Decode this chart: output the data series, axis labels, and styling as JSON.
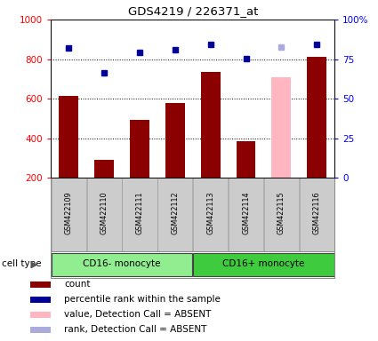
{
  "title": "GDS4219 / 226371_at",
  "samples": [
    "GSM422109",
    "GSM422110",
    "GSM422111",
    "GSM422112",
    "GSM422113",
    "GSM422114",
    "GSM422115",
    "GSM422116"
  ],
  "counts": [
    615,
    290,
    495,
    580,
    735,
    385,
    710,
    810
  ],
  "ranks_raw": [
    820,
    665,
    790,
    810,
    845,
    755,
    825,
    845
  ],
  "absent_mask": [
    false,
    false,
    false,
    false,
    false,
    false,
    true,
    false
  ],
  "ylim_left": [
    200,
    1000
  ],
  "ylim_right": [
    0,
    100
  ],
  "yticks_left": [
    200,
    400,
    600,
    800,
    1000
  ],
  "ytick_labels_left": [
    "200",
    "400",
    "600",
    "800",
    "1000"
  ],
  "yticks_right": [
    0,
    25,
    50,
    75,
    100
  ],
  "ytick_labels_right": [
    "0",
    "25",
    "50",
    "75",
    "100%"
  ],
  "cell_groups": [
    {
      "label": "CD16- monocyte",
      "indices": [
        0,
        1,
        2,
        3
      ],
      "color": "#90EE90"
    },
    {
      "label": "CD16+ monocyte",
      "indices": [
        4,
        5,
        6,
        7
      ],
      "color": "#3ECC3E"
    }
  ],
  "bar_color_present": "#8B0000",
  "bar_color_absent": "#FFB6C1",
  "rank_color_present": "#000099",
  "rank_color_absent": "#AAAADD",
  "bar_width": 0.55,
  "legend_items": [
    {
      "color": "#8B0000",
      "label": "count",
      "marker": "s"
    },
    {
      "color": "#000099",
      "label": "percentile rank within the sample",
      "marker": "s"
    },
    {
      "color": "#FFB6C1",
      "label": "value, Detection Call = ABSENT",
      "marker": "s"
    },
    {
      "color": "#AAAADD",
      "label": "rank, Detection Call = ABSENT",
      "marker": "s"
    }
  ],
  "cell_type_label": "cell type",
  "sample_box_color": "#cccccc",
  "gridline_ticks": [
    400,
    600,
    800
  ]
}
